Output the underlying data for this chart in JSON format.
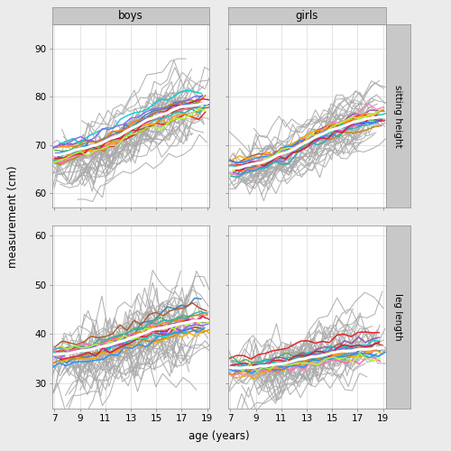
{
  "panel_bg": "#ebebeb",
  "plot_bg": "#ffffff",
  "grid_color": "#d9d9d9",
  "strip_bg": "#c8c8c8",
  "strip_text_color": "#000000",
  "axis_label_color": "#000000",
  "gray_line_color": "#aaaaaa",
  "gray_line_alpha": 0.9,
  "white_mean_color": "#ffffff",
  "mean_lw": 2.2,
  "colored_lw": 1.1,
  "gray_lw": 0.75,
  "title_boys": "boys",
  "title_girls": "girls",
  "strip_right_sh": "sitting height",
  "strip_right_ll": "leg length",
  "xlabel": "age (years)",
  "ylabel": "measurement (cm)",
  "age_min": 7,
  "age_max": 19,
  "xticks": [
    7,
    9,
    11,
    13,
    15,
    17,
    19
  ],
  "sh_ylim": [
    57,
    95
  ],
  "ll_ylim": [
    25,
    62
  ],
  "sh_yticks": [
    60,
    70,
    80,
    90
  ],
  "ll_yticks": [
    30,
    40,
    50,
    60
  ],
  "random_seed": 12
}
